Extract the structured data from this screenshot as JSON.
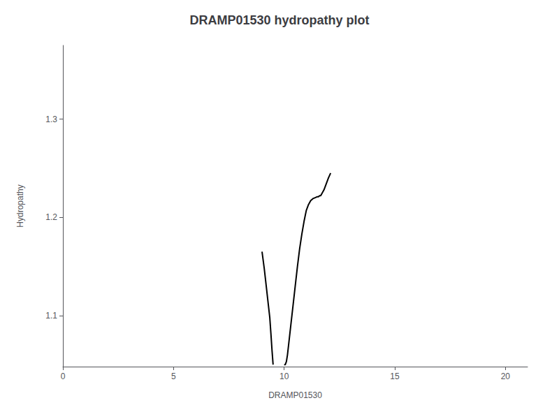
{
  "chart_data": {
    "type": "line",
    "title": "DRAMP01530 hydropathy plot",
    "xlabel": "DRAMP01530",
    "ylabel": "Hydropathy",
    "xlim": [
      0,
      21
    ],
    "ylim": [
      1.048,
      1.375
    ],
    "xticks": [
      0,
      5,
      10,
      15,
      20
    ],
    "yticks": [
      1.1,
      1.2,
      1.3
    ],
    "grid": false,
    "series": [
      {
        "color": "#000000",
        "x": [
          9.0,
          9.1,
          9.15,
          9.2,
          9.25,
          9.3,
          9.35,
          9.4,
          9.45,
          9.5
        ],
        "values": [
          1.165,
          1.148,
          1.138,
          1.128,
          1.118,
          1.108,
          1.098,
          1.082,
          1.065,
          1.05
        ]
      },
      {
        "color": "#000000",
        "x": [
          10.0,
          10.05,
          10.1,
          10.15,
          10.2,
          10.3,
          10.4,
          10.5,
          10.6,
          10.7,
          10.8,
          10.9,
          11.0,
          11.1,
          11.2,
          11.3,
          11.4,
          11.5,
          11.55,
          11.6,
          11.65,
          11.7,
          11.8,
          11.9,
          12.0,
          12.1
        ],
        "values": [
          1.05,
          1.05,
          1.053,
          1.06,
          1.07,
          1.09,
          1.11,
          1.13,
          1.15,
          1.168,
          1.183,
          1.196,
          1.207,
          1.213,
          1.217,
          1.219,
          1.22,
          1.221,
          1.221,
          1.222,
          1.222,
          1.224,
          1.228,
          1.234,
          1.24,
          1.245
        ]
      }
    ]
  }
}
